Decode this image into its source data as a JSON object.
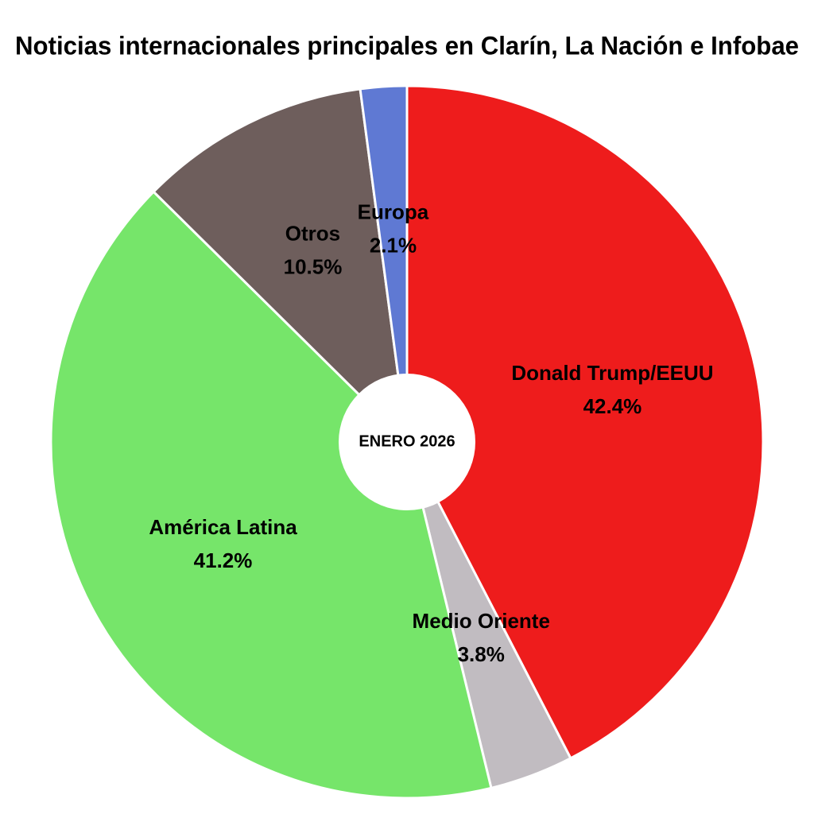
{
  "chart_data": {
    "type": "pie",
    "title": "Noticias internacionales principales en Clarín, La Nación e Infobae",
    "center_label": "ENERO 2026",
    "categories": [
      "Donald Trump/EEUU",
      "Medio Oriente",
      "América Latina",
      "Otros",
      "Europa"
    ],
    "values": [
      42.4,
      3.8,
      41.2,
      10.5,
      2.1
    ],
    "value_labels": [
      "42.4%",
      "3.8%",
      "41.2%",
      "10.5%",
      "2.1%"
    ],
    "colors": [
      "#ee1c1c",
      "#c1bcc1",
      "#76e56a",
      "#6e5e5c",
      "#5f79d3"
    ]
  }
}
